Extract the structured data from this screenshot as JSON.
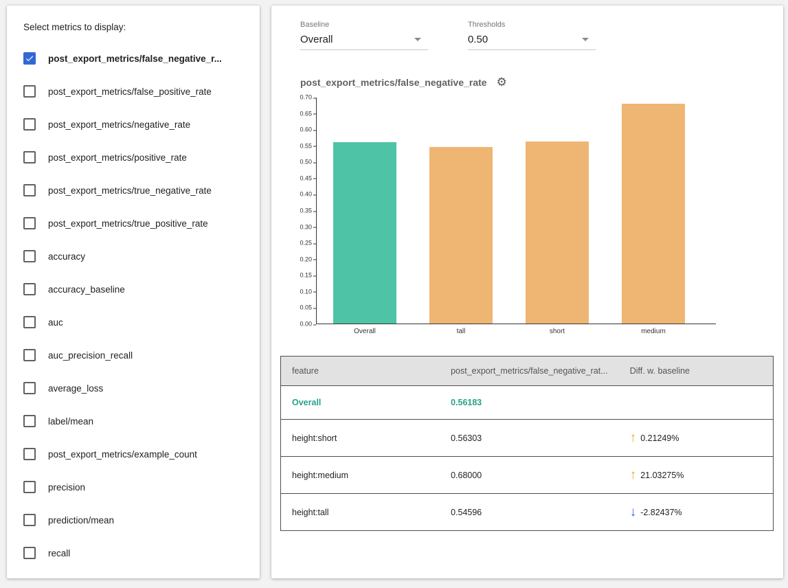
{
  "left_panel": {
    "title": "Select metrics to display:",
    "metrics": [
      {
        "label": "post_export_metrics/false_negative_r...",
        "checked": true
      },
      {
        "label": "post_export_metrics/false_positive_rate",
        "checked": false
      },
      {
        "label": "post_export_metrics/negative_rate",
        "checked": false
      },
      {
        "label": "post_export_metrics/positive_rate",
        "checked": false
      },
      {
        "label": "post_export_metrics/true_negative_rate",
        "checked": false
      },
      {
        "label": "post_export_metrics/true_positive_rate",
        "checked": false
      },
      {
        "label": "accuracy",
        "checked": false
      },
      {
        "label": "accuracy_baseline",
        "checked": false
      },
      {
        "label": "auc",
        "checked": false
      },
      {
        "label": "auc_precision_recall",
        "checked": false
      },
      {
        "label": "average_loss",
        "checked": false
      },
      {
        "label": "label/mean",
        "checked": false
      },
      {
        "label": "post_export_metrics/example_count",
        "checked": false
      },
      {
        "label": "precision",
        "checked": false
      },
      {
        "label": "prediction/mean",
        "checked": false
      },
      {
        "label": "recall",
        "checked": false
      }
    ]
  },
  "right_panel": {
    "baseline": {
      "label": "Baseline",
      "value": "Overall"
    },
    "thresholds": {
      "label": "Thresholds",
      "value": "0.50"
    },
    "chart_title": "post_export_metrics/false_negative_rate",
    "settings_icon": "⚙"
  },
  "chart_data": {
    "type": "bar",
    "title": "post_export_metrics/false_negative_rate",
    "categories": [
      "Overall",
      "tall",
      "short",
      "medium"
    ],
    "values": [
      0.56183,
      0.54596,
      0.56303,
      0.68
    ],
    "bar_colors": [
      "#4ec3a6",
      "#efb573",
      "#efb573",
      "#efb573"
    ],
    "xlabel": "",
    "ylabel": "",
    "ylim": [
      0.0,
      0.7
    ],
    "ytick_step": 0.05,
    "grid": false,
    "legend": "none"
  },
  "table": {
    "headers": [
      "feature",
      "post_export_metrics/false_negative_rat...",
      "Diff. w. baseline"
    ],
    "rows": [
      {
        "feature": "Overall",
        "value": "0.56183",
        "diff": "",
        "direction": "",
        "baseline": true
      },
      {
        "feature": "height:short",
        "value": "0.56303",
        "diff": "0.21249%",
        "direction": "up",
        "baseline": false
      },
      {
        "feature": "height:medium",
        "value": "0.68000",
        "diff": "21.03275%",
        "direction": "up",
        "baseline": false
      },
      {
        "feature": "height:tall",
        "value": "0.54596",
        "diff": "-2.82437%",
        "direction": "down",
        "baseline": false
      }
    ]
  },
  "colors": {
    "baseline_bar": "#4ec3a6",
    "slice_bar": "#efb573",
    "baseline_text": "#2aa18a",
    "checkbox_checked": "#3367d6",
    "arrow_up": "#f5a623",
    "arrow_down": "#3d5afe"
  }
}
